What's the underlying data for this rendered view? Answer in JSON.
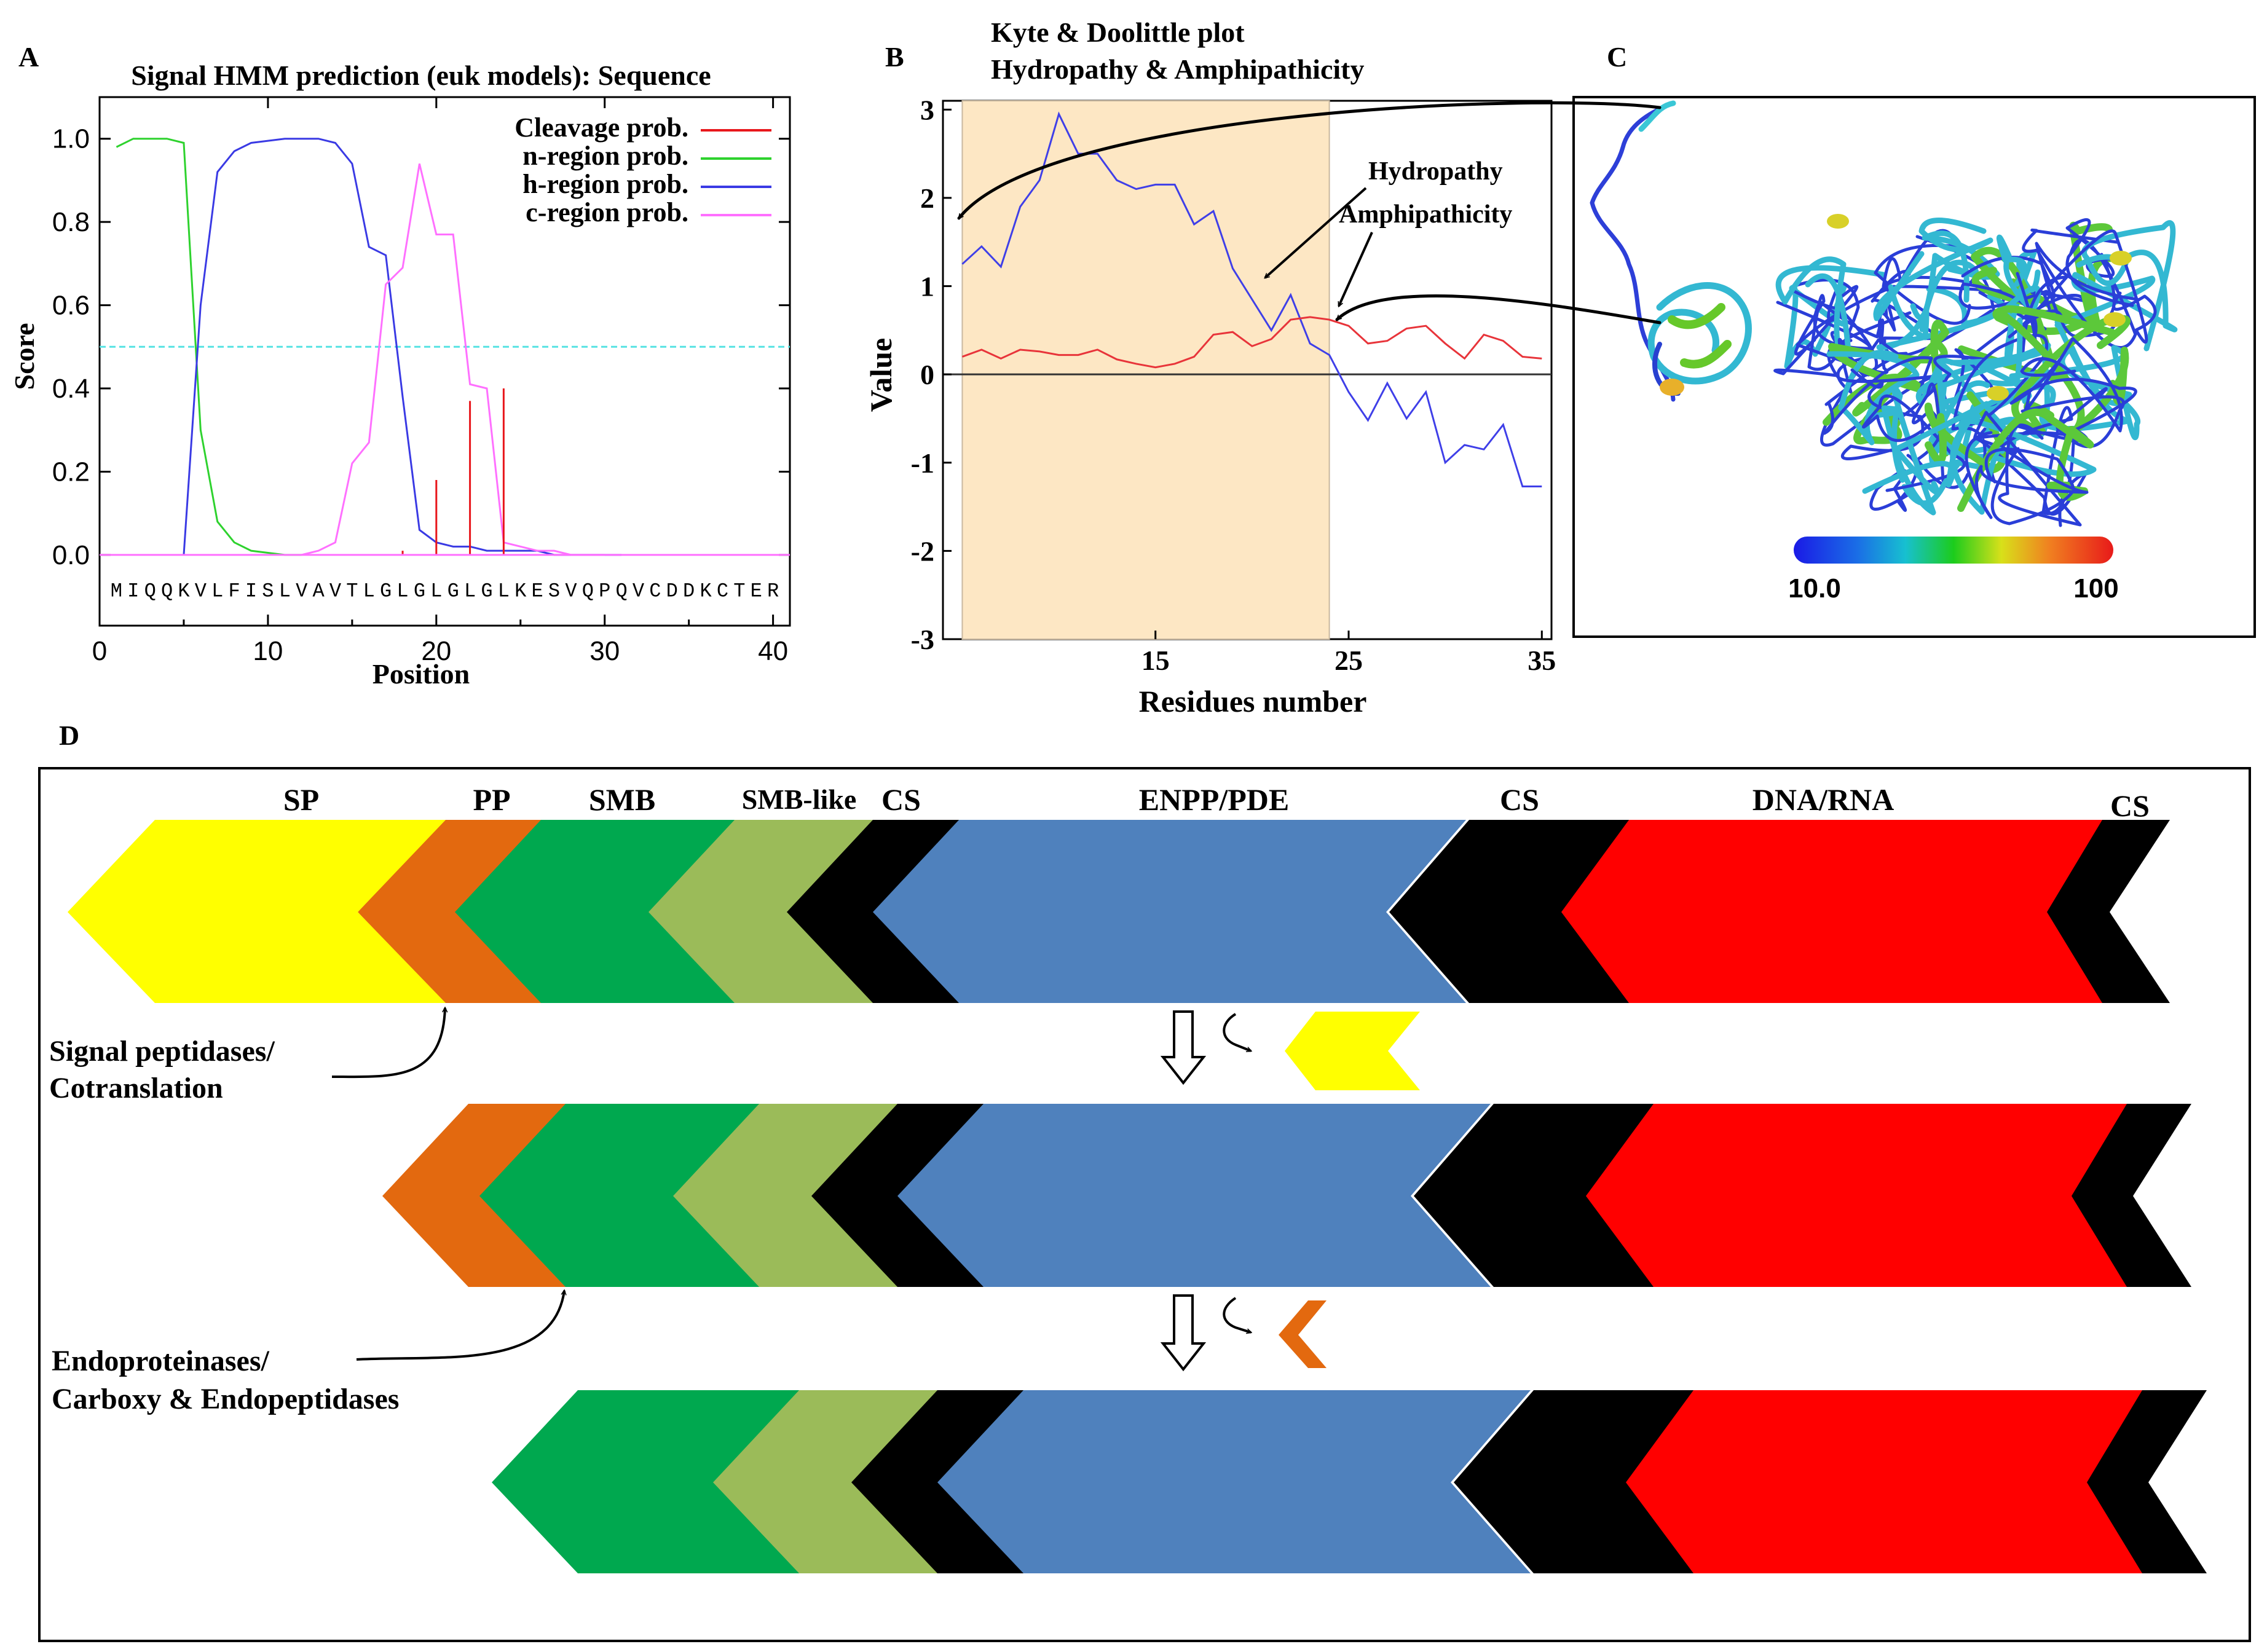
{
  "colors": {
    "cleavage": "#e8171c",
    "n_region": "#2ed22e",
    "h_region": "#3a3ae4",
    "c_region": "#ff70ff",
    "threshold": "#57e3e3",
    "hydropathy": "#3f3fe8",
    "amphipathicity": "#e8343a",
    "shade": "#fde7c4",
    "SP": "#ffff00",
    "PP": "#e3690f",
    "SMB": "#00a84f",
    "SMB-like": "#9bbb59",
    "CS": "#000000",
    "ENPP/PDE": "#4f81bd",
    "DNA/RNA": "#ff0000"
  },
  "chart_data": [
    {
      "panel": "A",
      "type": "line",
      "title": "Signal HMM prediction (euk models): Sequence",
      "xlabel": "Position",
      "ylabel": "Score",
      "xlim": [
        0,
        41
      ],
      "ylim": [
        -0.17,
        1.1
      ],
      "xticks": [
        0,
        10,
        20,
        30,
        40
      ],
      "yticks": [
        "0.0",
        "0.2",
        "0.4",
        "0.6",
        "0.8",
        "1.0"
      ],
      "threshold": 0.5,
      "legend": [
        "Cleavage prob.",
        "n-region prob.",
        "h-region prob.",
        "c-region prob."
      ],
      "sequence": "MIQQKVLFISLVAVTLGLGLGLGLKESVQPQVCDDKCTERQA",
      "series": [
        {
          "name": "n-region prob.",
          "color_key": "n_region",
          "x": [
            1,
            2,
            3,
            4,
            5,
            6,
            7,
            8,
            9,
            10,
            11,
            12
          ],
          "y": [
            0.98,
            1.0,
            1.0,
            1.0,
            0.99,
            0.3,
            0.08,
            0.03,
            0.01,
            0.005,
            0.0,
            0.0
          ]
        },
        {
          "name": "h-region prob.",
          "color_key": "h_region",
          "x": [
            5,
            6,
            7,
            8,
            9,
            10,
            11,
            12,
            13,
            14,
            15,
            16,
            17,
            18,
            19,
            20,
            21,
            22,
            23,
            24,
            25,
            26,
            27,
            28,
            29,
            30,
            31
          ],
          "y": [
            0.0,
            0.6,
            0.92,
            0.97,
            0.99,
            0.995,
            1.0,
            1.0,
            1.0,
            0.99,
            0.94,
            0.74,
            0.72,
            0.38,
            0.06,
            0.03,
            0.02,
            0.02,
            0.01,
            0.01,
            0.01,
            0.01,
            0.0,
            0.0,
            0.0,
            0.0,
            0.0
          ]
        },
        {
          "name": "c-region prob.",
          "color_key": "c_region",
          "x": [
            12,
            13,
            14,
            15,
            16,
            17,
            18,
            19,
            20,
            21,
            22,
            23,
            24,
            25,
            26,
            27,
            28,
            29,
            30
          ],
          "y": [
            0.0,
            0.01,
            0.03,
            0.22,
            0.27,
            0.65,
            0.69,
            0.94,
            0.77,
            0.77,
            0.41,
            0.4,
            0.03,
            0.02,
            0.01,
            0.01,
            0.0,
            0.0,
            0.0
          ]
        },
        {
          "name": "Cleavage prob.",
          "color_key": "cleavage",
          "style": "stems",
          "x": [
            18,
            20,
            22,
            24
          ],
          "y": [
            0.01,
            0.18,
            0.37,
            0.4
          ]
        }
      ]
    },
    {
      "panel": "B",
      "type": "line",
      "title": "Kyte & Doolittle plot",
      "subtitle": "Hydropathy & Amphipathicity",
      "xlabel": "Residues number",
      "ylabel": "Value",
      "xlim": [
        4,
        35.5
      ],
      "ylim": [
        -3,
        3.1
      ],
      "xticks": [
        15,
        25,
        35
      ],
      "yticks": [
        3,
        2,
        1,
        0,
        -1,
        -2,
        -3
      ],
      "shaded_region": [
        5,
        24
      ],
      "annotations": [
        "Hydropathy",
        "Amphipathicity"
      ],
      "series": [
        {
          "name": "Hydropathy",
          "color_key": "hydropathy",
          "x": [
            5,
            6,
            7,
            8,
            9,
            10,
            11,
            12,
            13,
            14,
            15,
            16,
            17,
            18,
            19,
            20,
            21,
            22,
            23,
            24,
            25,
            26,
            27,
            28,
            29,
            30,
            31,
            32,
            33,
            34,
            35
          ],
          "y": [
            1.25,
            1.45,
            1.22,
            1.9,
            2.2,
            2.95,
            2.5,
            2.5,
            2.2,
            2.1,
            2.15,
            2.15,
            1.7,
            1.85,
            1.2,
            0.85,
            0.5,
            0.9,
            0.35,
            0.22,
            -0.2,
            -0.52,
            -0.1,
            -0.5,
            -0.2,
            -1.0,
            -0.8,
            -0.85,
            -0.57,
            -1.27,
            -1.27
          ]
        },
        {
          "name": "Amphipathicity",
          "color_key": "amphipathicity",
          "x": [
            5,
            6,
            7,
            8,
            9,
            10,
            11,
            12,
            13,
            14,
            15,
            16,
            17,
            18,
            19,
            20,
            21,
            22,
            23,
            24,
            25,
            26,
            27,
            28,
            29,
            30,
            31,
            32,
            33,
            34,
            35
          ],
          "y": [
            0.2,
            0.28,
            0.18,
            0.28,
            0.26,
            0.22,
            0.22,
            0.28,
            0.17,
            0.12,
            0.08,
            0.12,
            0.2,
            0.45,
            0.48,
            0.32,
            0.4,
            0.62,
            0.65,
            0.62,
            0.55,
            0.35,
            0.38,
            0.52,
            0.55,
            0.35,
            0.18,
            0.45,
            0.38,
            0.2,
            0.18
          ]
        }
      ]
    }
  ],
  "panel_labels": {
    "a": "A",
    "b": "B",
    "c": "C",
    "d": "D"
  },
  "panel_c": {
    "scale_min": "10.0",
    "scale_max": "100"
  },
  "panel_d": {
    "domain_labels": [
      "SP",
      "PP",
      "SMB",
      "SMB-like",
      "CS",
      "ENPP/PDE",
      "CS",
      "DNA/RNA",
      "CS"
    ],
    "annotation_1_line1": "Signal peptidases/",
    "annotation_1_line2": "Cotranslation",
    "annotation_2_line1": "Endoproteinases/",
    "annotation_2_line2": "Carboxy & Endopeptidases"
  }
}
